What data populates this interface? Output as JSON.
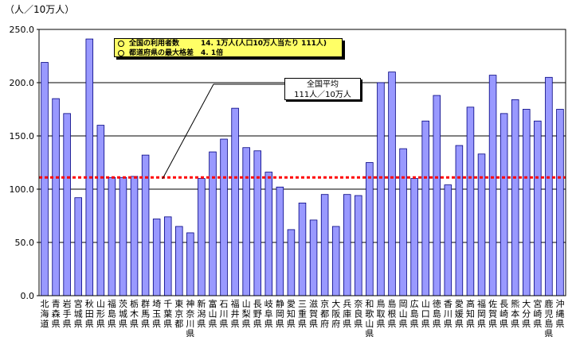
{
  "chart_data": {
    "type": "bar",
    "unit_label": "（人／10万人）",
    "ylim": [
      0,
      250
    ],
    "yticks": [
      "0.0",
      "50.0",
      "100.0",
      "150.0",
      "200.0",
      "250.0"
    ],
    "grid": true,
    "colors": {
      "bar": "#9999ff",
      "bar_edge": "#000080",
      "avg_line": "#ff0000"
    },
    "average_value": 111,
    "categories": [
      "北海道",
      "青森県",
      "岩手県",
      "宮城県",
      "秋田県",
      "山形県",
      "福島県",
      "茨城県",
      "栃木県",
      "群馬県",
      "埼玉県",
      "千葉県",
      "東京都",
      "神奈川県",
      "新潟県",
      "富山県",
      "石川県",
      "福井県",
      "山梨県",
      "長野県",
      "岐阜県",
      "静岡県",
      "愛知県",
      "三重県",
      "滋賀県",
      "京都府",
      "大阪府",
      "兵庫県",
      "奈良県",
      "和歌山県",
      "鳥取県",
      "島根県",
      "岡山県",
      "広島県",
      "山口県",
      "徳島県",
      "香川県",
      "愛媛県",
      "高知県",
      "福岡県",
      "佐賀県",
      "長崎県",
      "熊本県",
      "大分県",
      "宮崎県",
      "鹿児島県",
      "沖縄県"
    ],
    "values": [
      219,
      185,
      171,
      92,
      241,
      160,
      111,
      111,
      112,
      132,
      72,
      74,
      65,
      59,
      110,
      135,
      147,
      176,
      139,
      136,
      116,
      102,
      62,
      87,
      71,
      95,
      65,
      95,
      94,
      125,
      200,
      210,
      138,
      110,
      164,
      188,
      104,
      141,
      177,
      133,
      207,
      171,
      184,
      175,
      164,
      205,
      175
    ],
    "annotations": {
      "info_line1": "全国の利用者数　　　14. 1万人(人口10万人当たり 111人)",
      "info_line2": "都道府県の最大格差　4. 1倍",
      "avg_line1": "全国平均",
      "avg_line2": "111人／10万人"
    }
  }
}
